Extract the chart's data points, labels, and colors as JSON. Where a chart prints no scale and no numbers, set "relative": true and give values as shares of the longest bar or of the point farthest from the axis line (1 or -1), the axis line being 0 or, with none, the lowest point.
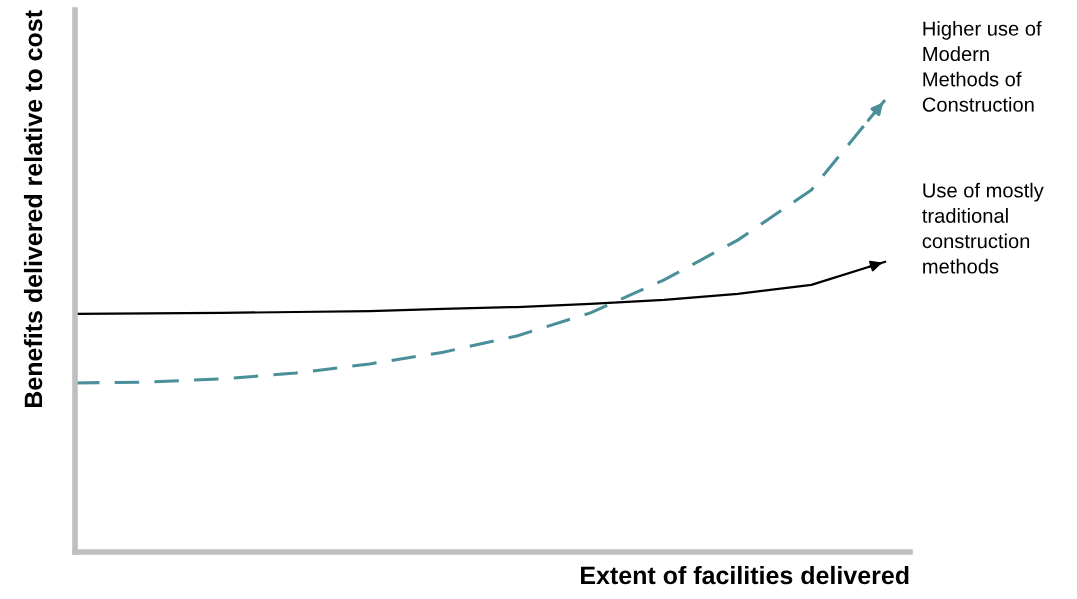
{
  "chart_data": {
    "type": "line",
    "relative": true,
    "xlabel": "Extent of facilities delivered",
    "ylabel": "Benefits delivered relative to cost",
    "categories": [
      null,
      null,
      null,
      null,
      null,
      null,
      null,
      null,
      null,
      null,
      null,
      null
    ],
    "series": [
      {
        "name": "Higher use of\nModern\nMethods of\nConstruction",
        "color": "#4a8f9a",
        "line_style": "dashed",
        "values": [
          0.374,
          0.376,
          0.383,
          0.396,
          0.416,
          0.442,
          0.478,
          0.529,
          0.602,
          0.69,
          0.801,
          1.0
        ]
      },
      {
        "name": "Use of mostly\ntraditional\nconstruction\nmethods",
        "color": "#000000",
        "line_style": "solid",
        "values": [
          0.527,
          0.528,
          0.529,
          0.531,
          0.533,
          0.538,
          0.542,
          0.549,
          0.558,
          0.571,
          0.591,
          0.642
        ]
      }
    ]
  }
}
